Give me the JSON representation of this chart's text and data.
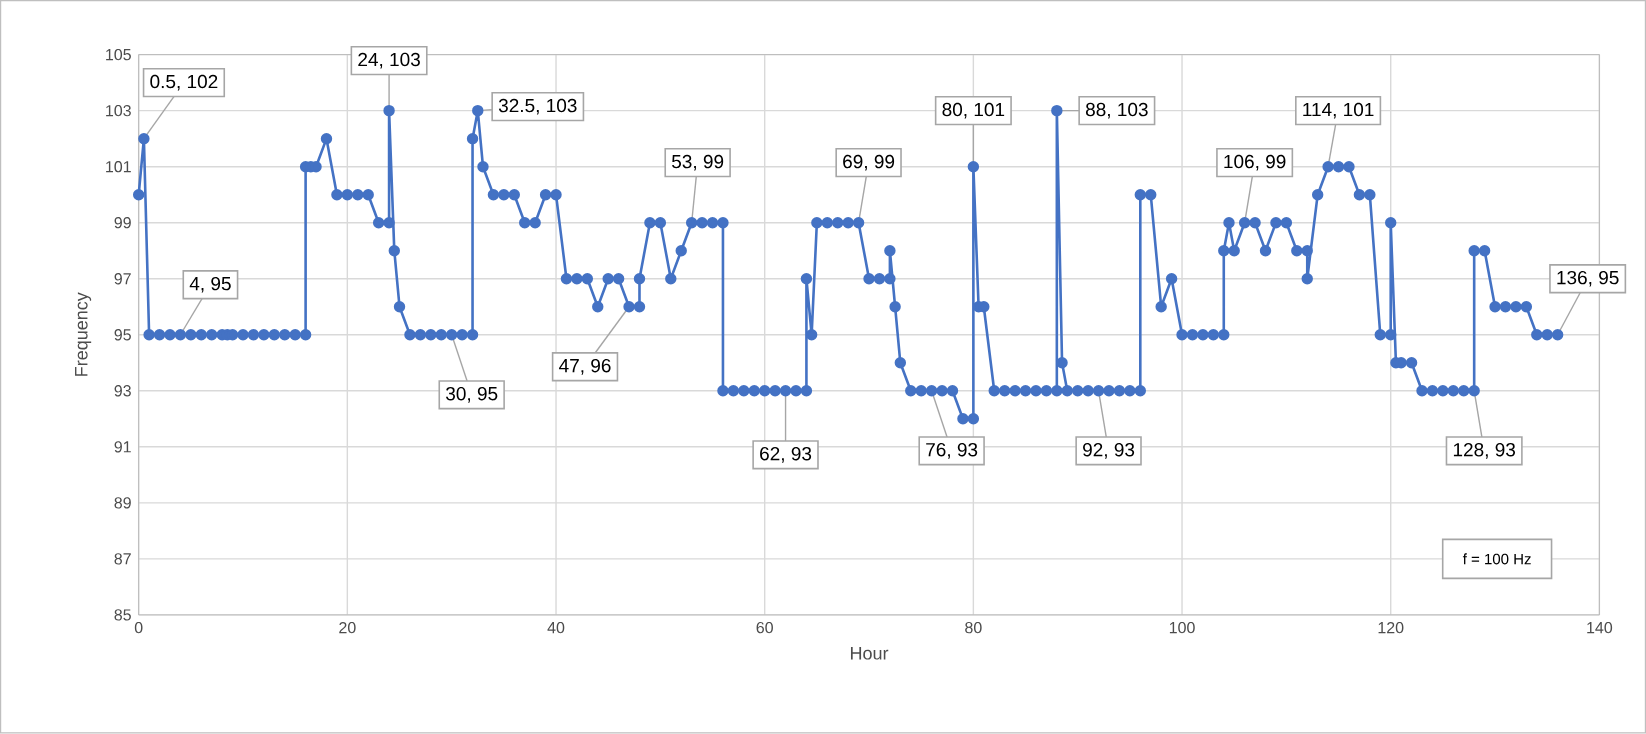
{
  "chart_data": {
    "type": "line",
    "xlabel": "Hour",
    "ylabel": "Frequency",
    "x": [
      0,
      0.5,
      1,
      2,
      3,
      4,
      5,
      6,
      7,
      8,
      8.5,
      9,
      10,
      11,
      12,
      13,
      14,
      15,
      16,
      16,
      16.5,
      17,
      18,
      19,
      20,
      21,
      22,
      23,
      24,
      24,
      24.5,
      25,
      26,
      27,
      28,
      29,
      30,
      31,
      32,
      32,
      32.5,
      33,
      34,
      35,
      36,
      37,
      38,
      39,
      40,
      41,
      42,
      43,
      44,
      45,
      46,
      47,
      48,
      48,
      49,
      50,
      51,
      52,
      53,
      54,
      55,
      56,
      56,
      57,
      58,
      59,
      60,
      61,
      62,
      63,
      64,
      64,
      64.5,
      65,
      66,
      67,
      68,
      69,
      70,
      71,
      72,
      72,
      72.5,
      73,
      74,
      75,
      76,
      77,
      78,
      79,
      80,
      80,
      80.5,
      81,
      82,
      83,
      84,
      85,
      86,
      87,
      88,
      88,
      88.5,
      89,
      90,
      91,
      92,
      93,
      94,
      95,
      96,
      96,
      97,
      98,
      99,
      100,
      101,
      102,
      103,
      104,
      104,
      104.5,
      105,
      106,
      107,
      108,
      109,
      110,
      111,
      112,
      112,
      113,
      114,
      115,
      116,
      117,
      118,
      119,
      120,
      120,
      120.5,
      121,
      122,
      123,
      124,
      125,
      126,
      127,
      128,
      128,
      129,
      130,
      131,
      132,
      133,
      134,
      135,
      136
    ],
    "values": [
      100,
      102,
      95,
      95,
      95,
      95,
      95,
      95,
      95,
      95,
      95,
      95,
      95,
      95,
      95,
      95,
      95,
      95,
      95,
      101,
      101,
      101,
      102,
      100,
      100,
      100,
      100,
      99,
      99,
      103,
      98,
      96,
      95,
      95,
      95,
      95,
      95,
      95,
      95,
      102,
      103,
      101,
      100,
      100,
      100,
      99,
      99,
      100,
      100,
      97,
      97,
      97,
      96,
      97,
      97,
      96,
      96,
      97,
      99,
      99,
      97,
      98,
      99,
      99,
      99,
      99,
      93,
      93,
      93,
      93,
      93,
      93,
      93,
      93,
      93,
      97,
      95,
      99,
      99,
      99,
      99,
      99,
      97,
      97,
      97,
      98,
      96,
      94,
      93,
      93,
      93,
      93,
      93,
      92,
      92,
      101,
      96,
      96,
      93,
      93,
      93,
      93,
      93,
      93,
      93,
      103,
      94,
      93,
      93,
      93,
      93,
      93,
      93,
      93,
      93,
      100,
      100,
      96,
      97,
      95,
      95,
      95,
      95,
      95,
      98,
      99,
      98,
      99,
      99,
      98,
      99,
      99,
      98,
      98,
      97,
      100,
      101,
      101,
      101,
      100,
      100,
      95,
      95,
      99,
      94,
      94,
      94,
      93,
      93,
      93,
      93,
      93,
      93,
      98,
      98,
      96,
      96,
      96,
      96,
      95,
      95,
      95
    ],
    "color": "#4472c4",
    "marker": "circle",
    "line_style": "solid",
    "grid": true,
    "xlim": [
      0,
      140
    ],
    "xticks": [
      0,
      20,
      40,
      60,
      80,
      100,
      120,
      140
    ],
    "ylim": [
      85,
      105
    ],
    "yticks": [
      85,
      87,
      89,
      91,
      93,
      95,
      97,
      99,
      101,
      103,
      105
    ],
    "annotations": [
      {
        "text": "0.5, 102",
        "x": 0.5,
        "y": 102
      },
      {
        "text": "4, 95",
        "x": 4,
        "y": 95
      },
      {
        "text": "24, 103",
        "x": 24,
        "y": 103
      },
      {
        "text": "30, 95",
        "x": 30,
        "y": 95
      },
      {
        "text": "32.5, 103",
        "x": 32.5,
        "y": 103
      },
      {
        "text": "47, 96",
        "x": 47,
        "y": 96
      },
      {
        "text": "53, 99",
        "x": 53,
        "y": 99
      },
      {
        "text": "62, 93",
        "x": 62,
        "y": 93
      },
      {
        "text": "69, 99",
        "x": 69,
        "y": 99
      },
      {
        "text": "76, 93",
        "x": 76,
        "y": 93
      },
      {
        "text": "80, 101",
        "x": 80,
        "y": 101
      },
      {
        "text": "88, 103",
        "x": 88,
        "y": 103
      },
      {
        "text": "92, 93",
        "x": 92,
        "y": 93
      },
      {
        "text": "106, 99",
        "x": 106,
        "y": 99
      },
      {
        "text": "114, 101",
        "x": 114,
        "y": 101
      },
      {
        "text": "128, 93",
        "x": 128,
        "y": 93
      },
      {
        "text": "136, 95",
        "x": 136,
        "y": 95
      },
      "f = 100 Hz"
    ]
  }
}
